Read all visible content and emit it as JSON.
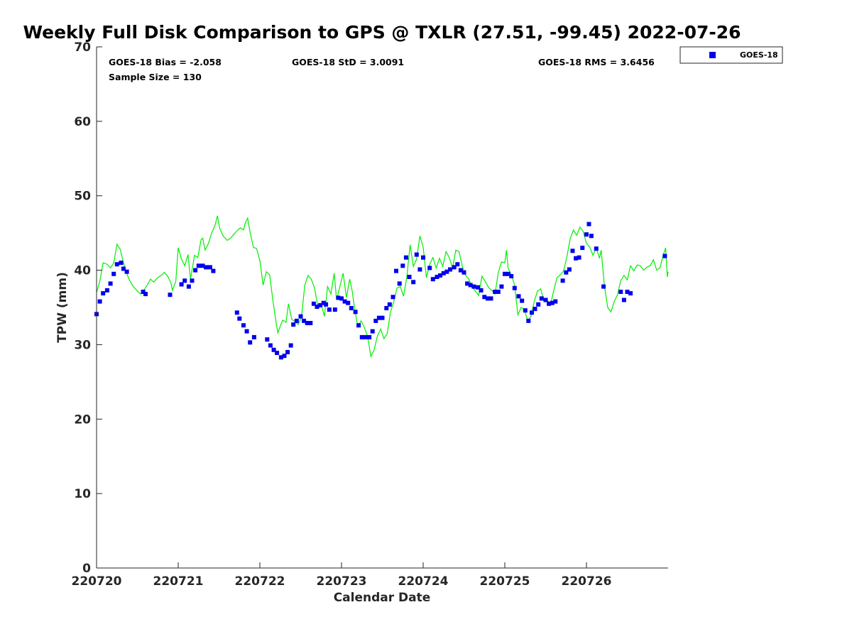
{
  "chart_data": {
    "type": "scatter",
    "title": "Weekly Full Disk Comparison to GPS @ TXLR (27.51, -99.45) 2022-07-26",
    "xlabel": "Calendar Date",
    "ylabel": "TPW (mm)",
    "ylim": [
      0,
      70
    ],
    "xlim": [
      0,
      7
    ],
    "grid": false,
    "legend_placement": "outside-top-right",
    "x_tick_labels": [
      "220720",
      "220721",
      "220722",
      "220723",
      "220724",
      "220725",
      "220726"
    ],
    "y_tick_labels": [
      "0",
      "10",
      "20",
      "30",
      "40",
      "50",
      "60",
      "70"
    ],
    "stats": {
      "bias": "GOES-18 Bias = -2.058",
      "std": "GOES-18 StD = 3.0091",
      "rms": "GOES-18 RMS = 3.6456",
      "sample_size": "Sample Size = 130"
    },
    "legend": {
      "label": "GOES-18"
    },
    "colors": {
      "series": "#0000ee",
      "gps": "#00ee00"
    },
    "series": [
      {
        "name": "GOES-18",
        "marker": "square",
        "points": [
          [
            0.0,
            34.1
          ],
          [
            0.04,
            35.8
          ],
          [
            0.08,
            36.9
          ],
          [
            0.13,
            37.3
          ],
          [
            0.17,
            38.2
          ],
          [
            0.21,
            39.5
          ],
          [
            0.25,
            40.8
          ],
          [
            0.3,
            41.0
          ],
          [
            0.33,
            40.2
          ],
          [
            0.37,
            39.8
          ],
          [
            0.57,
            37.1
          ],
          [
            0.6,
            36.8
          ],
          [
            0.9,
            36.7
          ],
          [
            1.04,
            38.1
          ],
          [
            1.08,
            38.6
          ],
          [
            1.13,
            37.8
          ],
          [
            1.17,
            38.6
          ],
          [
            1.21,
            40.0
          ],
          [
            1.25,
            40.6
          ],
          [
            1.3,
            40.6
          ],
          [
            1.34,
            40.4
          ],
          [
            1.39,
            40.4
          ],
          [
            1.43,
            39.9
          ],
          [
            1.72,
            34.3
          ],
          [
            1.75,
            33.5
          ],
          [
            1.8,
            32.6
          ],
          [
            1.84,
            31.8
          ],
          [
            1.88,
            30.3
          ],
          [
            1.93,
            31.0
          ],
          [
            2.09,
            30.7
          ],
          [
            2.13,
            29.9
          ],
          [
            2.17,
            29.3
          ],
          [
            2.21,
            28.9
          ],
          [
            2.26,
            28.3
          ],
          [
            2.3,
            28.5
          ],
          [
            2.34,
            29.0
          ],
          [
            2.38,
            29.9
          ],
          [
            2.41,
            32.7
          ],
          [
            2.45,
            33.2
          ],
          [
            2.5,
            33.8
          ],
          [
            2.54,
            33.2
          ],
          [
            2.58,
            32.9
          ],
          [
            2.62,
            32.9
          ],
          [
            2.66,
            35.5
          ],
          [
            2.7,
            35.1
          ],
          [
            2.74,
            35.3
          ],
          [
            2.78,
            35.6
          ],
          [
            2.81,
            35.4
          ],
          [
            2.85,
            34.7
          ],
          [
            2.92,
            34.7
          ],
          [
            2.96,
            36.3
          ],
          [
            3.0,
            36.2
          ],
          [
            3.04,
            35.8
          ],
          [
            3.08,
            35.6
          ],
          [
            3.12,
            34.9
          ],
          [
            3.17,
            34.4
          ],
          [
            3.21,
            32.6
          ],
          [
            3.25,
            31.0
          ],
          [
            3.29,
            31.0
          ],
          [
            3.34,
            31.0
          ],
          [
            3.38,
            31.8
          ],
          [
            3.42,
            33.2
          ],
          [
            3.46,
            33.6
          ],
          [
            3.5,
            33.6
          ],
          [
            3.55,
            34.9
          ],
          [
            3.59,
            35.4
          ],
          [
            3.63,
            36.4
          ],
          [
            3.67,
            39.9
          ],
          [
            3.71,
            38.2
          ],
          [
            3.75,
            40.6
          ],
          [
            3.79,
            41.7
          ],
          [
            3.83,
            39.1
          ],
          [
            3.88,
            38.4
          ],
          [
            3.92,
            42.1
          ],
          [
            3.96,
            40.1
          ],
          [
            4.0,
            41.7
          ],
          [
            4.08,
            40.3
          ],
          [
            4.12,
            38.8
          ],
          [
            4.17,
            39.1
          ],
          [
            4.21,
            39.3
          ],
          [
            4.25,
            39.6
          ],
          [
            4.29,
            39.8
          ],
          [
            4.33,
            40.1
          ],
          [
            4.38,
            40.4
          ],
          [
            4.42,
            40.8
          ],
          [
            4.46,
            40.0
          ],
          [
            4.5,
            39.7
          ],
          [
            4.54,
            38.2
          ],
          [
            4.58,
            38.0
          ],
          [
            4.62,
            37.8
          ],
          [
            4.67,
            37.7
          ],
          [
            4.71,
            37.3
          ],
          [
            4.75,
            36.4
          ],
          [
            4.79,
            36.2
          ],
          [
            4.83,
            36.2
          ],
          [
            4.88,
            37.1
          ],
          [
            4.92,
            37.1
          ],
          [
            4.96,
            37.8
          ],
          [
            5.0,
            39.5
          ],
          [
            5.04,
            39.5
          ],
          [
            5.08,
            39.2
          ],
          [
            5.12,
            37.6
          ],
          [
            5.17,
            36.5
          ],
          [
            5.21,
            35.9
          ],
          [
            5.25,
            34.6
          ],
          [
            5.29,
            33.2
          ],
          [
            5.33,
            34.3
          ],
          [
            5.37,
            34.8
          ],
          [
            5.41,
            35.4
          ],
          [
            5.45,
            36.2
          ],
          [
            5.5,
            36.0
          ],
          [
            5.54,
            35.5
          ],
          [
            5.58,
            35.6
          ],
          [
            5.62,
            35.8
          ],
          [
            5.71,
            38.6
          ],
          [
            5.75,
            39.7
          ],
          [
            5.79,
            40.1
          ],
          [
            5.83,
            42.6
          ],
          [
            5.87,
            41.6
          ],
          [
            5.91,
            41.7
          ],
          [
            5.95,
            43.0
          ],
          [
            6.0,
            44.8
          ],
          [
            6.03,
            46.2
          ],
          [
            6.06,
            44.6
          ],
          [
            6.12,
            42.9
          ],
          [
            6.21,
            37.8
          ],
          [
            6.42,
            37.1
          ],
          [
            6.46,
            36.0
          ],
          [
            6.5,
            37.1
          ],
          [
            6.54,
            36.9
          ],
          [
            6.96,
            41.9
          ]
        ]
      },
      {
        "name": "GPS",
        "marker": "line",
        "points": [
          [
            0.0,
            37.0
          ],
          [
            0.04,
            38.5
          ],
          [
            0.08,
            41.0
          ],
          [
            0.13,
            40.8
          ],
          [
            0.17,
            40.3
          ],
          [
            0.21,
            41.0
          ],
          [
            0.25,
            43.5
          ],
          [
            0.29,
            42.8
          ],
          [
            0.33,
            41.0
          ],
          [
            0.37,
            39.5
          ],
          [
            0.41,
            38.5
          ],
          [
            0.45,
            37.8
          ],
          [
            0.5,
            37.2
          ],
          [
            0.54,
            36.8
          ],
          [
            0.58,
            37.3
          ],
          [
            0.62,
            38.0
          ],
          [
            0.66,
            38.8
          ],
          [
            0.7,
            38.4
          ],
          [
            0.74,
            38.9
          ],
          [
            0.79,
            39.3
          ],
          [
            0.83,
            39.7
          ],
          [
            0.87,
            39.2
          ],
          [
            0.91,
            38.3
          ],
          [
            0.93,
            37.3
          ],
          [
            0.97,
            38.5
          ],
          [
            1.0,
            43.0
          ],
          [
            1.04,
            41.5
          ],
          [
            1.08,
            40.6
          ],
          [
            1.12,
            42.1
          ],
          [
            1.15,
            38.8
          ],
          [
            1.2,
            42.0
          ],
          [
            1.24,
            41.7
          ],
          [
            1.28,
            44.1
          ],
          [
            1.3,
            44.3
          ],
          [
            1.33,
            42.7
          ],
          [
            1.37,
            43.6
          ],
          [
            1.41,
            45.0
          ],
          [
            1.45,
            46.0
          ],
          [
            1.48,
            47.3
          ],
          [
            1.51,
            45.6
          ],
          [
            1.55,
            44.6
          ],
          [
            1.6,
            44.0
          ],
          [
            1.64,
            44.3
          ],
          [
            1.68,
            44.8
          ],
          [
            1.72,
            45.3
          ],
          [
            1.76,
            45.7
          ],
          [
            1.8,
            45.4
          ],
          [
            1.82,
            46.3
          ],
          [
            1.85,
            47.0
          ],
          [
            1.88,
            45.1
          ],
          [
            1.92,
            43.1
          ],
          [
            1.96,
            42.9
          ],
          [
            2.0,
            41.3
          ],
          [
            2.04,
            38.0
          ],
          [
            2.08,
            39.8
          ],
          [
            2.12,
            39.4
          ],
          [
            2.16,
            35.9
          ],
          [
            2.2,
            32.9
          ],
          [
            2.22,
            31.6
          ],
          [
            2.25,
            32.5
          ],
          [
            2.28,
            33.3
          ],
          [
            2.32,
            33.0
          ],
          [
            2.35,
            35.5
          ],
          [
            2.39,
            33.4
          ],
          [
            2.43,
            33.1
          ],
          [
            2.47,
            32.7
          ],
          [
            2.51,
            33.7
          ],
          [
            2.55,
            38.0
          ],
          [
            2.59,
            39.3
          ],
          [
            2.63,
            38.8
          ],
          [
            2.67,
            37.6
          ],
          [
            2.71,
            35.2
          ],
          [
            2.75,
            35.5
          ],
          [
            2.79,
            33.8
          ],
          [
            2.83,
            37.8
          ],
          [
            2.87,
            36.8
          ],
          [
            2.91,
            39.6
          ],
          [
            2.94,
            36.0
          ],
          [
            2.98,
            37.8
          ],
          [
            3.02,
            39.6
          ],
          [
            3.06,
            36.3
          ],
          [
            3.1,
            38.8
          ],
          [
            3.13,
            37.3
          ],
          [
            3.16,
            34.9
          ],
          [
            3.2,
            32.4
          ],
          [
            3.24,
            33.2
          ],
          [
            3.28,
            32.3
          ],
          [
            3.32,
            31.1
          ],
          [
            3.36,
            28.4
          ],
          [
            3.4,
            29.3
          ],
          [
            3.44,
            31.2
          ],
          [
            3.48,
            32.1
          ],
          [
            3.52,
            30.8
          ],
          [
            3.56,
            31.5
          ],
          [
            3.6,
            34.4
          ],
          [
            3.64,
            35.8
          ],
          [
            3.68,
            37.6
          ],
          [
            3.72,
            37.8
          ],
          [
            3.76,
            36.5
          ],
          [
            3.8,
            39.1
          ],
          [
            3.84,
            43.4
          ],
          [
            3.88,
            40.5
          ],
          [
            3.92,
            41.5
          ],
          [
            3.96,
            44.6
          ],
          [
            4.0,
            43.1
          ],
          [
            4.04,
            39.0
          ],
          [
            4.08,
            40.8
          ],
          [
            4.12,
            41.7
          ],
          [
            4.16,
            40.3
          ],
          [
            4.2,
            41.6
          ],
          [
            4.24,
            40.5
          ],
          [
            4.28,
            42.5
          ],
          [
            4.32,
            41.7
          ],
          [
            4.36,
            40.3
          ],
          [
            4.4,
            42.7
          ],
          [
            4.44,
            42.5
          ],
          [
            4.48,
            40.5
          ],
          [
            4.52,
            39.3
          ],
          [
            4.56,
            38.8
          ],
          [
            4.6,
            37.7
          ],
          [
            4.64,
            37.2
          ],
          [
            4.68,
            36.6
          ],
          [
            4.72,
            39.2
          ],
          [
            4.76,
            38.5
          ],
          [
            4.8,
            37.7
          ],
          [
            4.84,
            37.3
          ],
          [
            4.88,
            36.8
          ],
          [
            4.92,
            39.7
          ],
          [
            4.96,
            41.1
          ],
          [
            5.0,
            41.0
          ],
          [
            5.02,
            42.7
          ],
          [
            5.04,
            40.3
          ],
          [
            5.08,
            39.4
          ],
          [
            5.12,
            38.0
          ],
          [
            5.16,
            34.0
          ],
          [
            5.2,
            35.0
          ],
          [
            5.24,
            34.7
          ],
          [
            5.28,
            33.2
          ],
          [
            5.32,
            33.8
          ],
          [
            5.36,
            35.8
          ],
          [
            5.4,
            37.2
          ],
          [
            5.44,
            37.5
          ],
          [
            5.48,
            35.8
          ],
          [
            5.52,
            36.0
          ],
          [
            5.56,
            35.4
          ],
          [
            5.6,
            37.3
          ],
          [
            5.64,
            39.0
          ],
          [
            5.68,
            39.4
          ],
          [
            5.72,
            39.9
          ],
          [
            5.76,
            41.8
          ],
          [
            5.8,
            44.2
          ],
          [
            5.84,
            45.4
          ],
          [
            5.88,
            44.7
          ],
          [
            5.92,
            45.8
          ],
          [
            5.96,
            45.2
          ],
          [
            6.0,
            43.6
          ],
          [
            6.04,
            43.1
          ],
          [
            6.08,
            42.0
          ],
          [
            6.12,
            43.0
          ],
          [
            6.16,
            41.6
          ],
          [
            6.18,
            42.7
          ],
          [
            6.22,
            37.9
          ],
          [
            6.26,
            35.0
          ],
          [
            6.3,
            34.4
          ],
          [
            6.34,
            35.8
          ],
          [
            6.38,
            36.7
          ],
          [
            6.42,
            38.6
          ],
          [
            6.46,
            39.3
          ],
          [
            6.5,
            38.7
          ],
          [
            6.54,
            40.6
          ],
          [
            6.58,
            39.9
          ],
          [
            6.62,
            40.7
          ],
          [
            6.66,
            40.6
          ],
          [
            6.7,
            40.0
          ],
          [
            6.74,
            40.4
          ],
          [
            6.78,
            40.6
          ],
          [
            6.82,
            41.4
          ],
          [
            6.86,
            40.0
          ],
          [
            6.9,
            40.3
          ],
          [
            6.94,
            42.0
          ],
          [
            6.97,
            43.0
          ],
          [
            6.99,
            39.1
          ],
          [
            7.0,
            39.8
          ]
        ]
      }
    ]
  }
}
